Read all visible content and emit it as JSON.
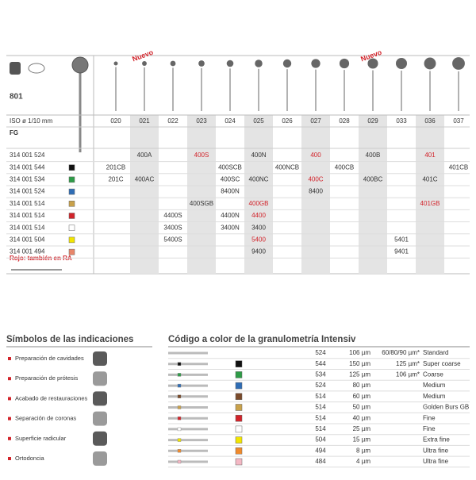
{
  "header": {
    "product": "801",
    "iso_label": "ISO ø 1/10 mm",
    "shank": "FG",
    "new_labels": [
      {
        "text": "Nuevo",
        "column": "021"
      },
      {
        "text": "Nuevo",
        "column": "029"
      }
    ]
  },
  "sizes": [
    "020",
    "021",
    "022",
    "023",
    "024",
    "025",
    "026",
    "027",
    "028",
    "029",
    "033",
    "036",
    "037"
  ],
  "rows": [
    {
      "ref": "314 001 524",
      "cells": [
        null,
        "400A",
        null,
        {
          "text": "400S",
          "color": "#d2232a"
        },
        null,
        "400N",
        null,
        {
          "text": "400",
          "color": "#d2232a"
        },
        null,
        "400B",
        null,
        {
          "text": "401",
          "color": "#d2232a"
        },
        null
      ]
    },
    {
      "ref": "314 001 544",
      "swatch": "#111111",
      "cells": [
        "201CB",
        null,
        null,
        null,
        "400SCB",
        null,
        "400NCB",
        null,
        "400CB",
        null,
        null,
        null,
        "401CB"
      ]
    },
    {
      "ref": "314 001 534",
      "swatch": "#2e9b47",
      "cells": [
        "201C",
        "400AC",
        null,
        null,
        "400SC",
        "400NC",
        null,
        {
          "text": "400C",
          "color": "#d2232a"
        },
        null,
        "400BC",
        null,
        "401C",
        null
      ]
    },
    {
      "ref": "314 001 524",
      "swatch": "#2f6db5",
      "cells": [
        null,
        null,
        null,
        null,
        "8400N",
        null,
        null,
        "8400",
        null,
        null,
        null,
        null,
        null
      ]
    },
    {
      "ref": "314 001 514",
      "swatch": "#c9a14a",
      "cells": [
        null,
        null,
        null,
        "400SGB",
        null,
        {
          "text": "400GB",
          "color": "#d2232a"
        },
        null,
        null,
        null,
        null,
        null,
        {
          "text": "401GB",
          "color": "#d2232a"
        },
        null
      ]
    },
    {
      "ref": "314 001 514",
      "swatch": "#d2232a",
      "cells": [
        null,
        null,
        "4400S",
        null,
        "4400N",
        {
          "text": "4400",
          "color": "#d2232a"
        },
        null,
        null,
        null,
        null,
        null,
        null,
        null
      ]
    },
    {
      "ref": "314 001 514",
      "swatch": "#ffffff",
      "cells": [
        null,
        null,
        "3400S",
        null,
        "3400N",
        "3400",
        null,
        null,
        null,
        null,
        null,
        null,
        null
      ]
    },
    {
      "ref": "314 001 504",
      "swatch": "#f2e500",
      "cells": [
        null,
        null,
        "5400S",
        null,
        null,
        {
          "text": "5400",
          "color": "#d2232a"
        },
        null,
        null,
        null,
        null,
        "5401",
        null,
        null
      ]
    },
    {
      "ref": "314 001 494",
      "swatch": "#e8866a",
      "cells": [
        null,
        null,
        null,
        null,
        null,
        "9400",
        null,
        null,
        null,
        null,
        "9401",
        null,
        null
      ]
    }
  ],
  "note": "Rojo: también en RA",
  "indications": {
    "title": "Símbolos de las indicaciones",
    "items": [
      "Preparación de cavidades",
      "Preparación de prótesis",
      "Acabado de restauraciones",
      "Separación de coronas",
      "Superficie radicular",
      "Ortodoncia"
    ]
  },
  "grit": {
    "title": "Código a color de la granulometría Intensiv",
    "rows": [
      {
        "code": "524",
        "grain": "106 µm",
        "extra": "60/80/90 µm*",
        "name": "Standard"
      },
      {
        "code": "544",
        "grain": "150 µm",
        "extra": "125 µm*",
        "name": "Super coarse",
        "color": "#111111"
      },
      {
        "code": "534",
        "grain": "125 µm",
        "extra": "106 µm*",
        "name": "Coarse",
        "color": "#2e9b47"
      },
      {
        "code": "524",
        "grain": "80 µm",
        "name": "Medium",
        "color": "#2f6db5"
      },
      {
        "code": "514",
        "grain": "60 µm",
        "name": "Medium",
        "color": "#7a4a2a"
      },
      {
        "code": "514",
        "grain": "50 µm",
        "name": "Golden Burs GB",
        "color": "#c9a14a"
      },
      {
        "code": "514",
        "grain": "40 µm",
        "name": "Fine",
        "color": "#d2232a"
      },
      {
        "code": "514",
        "grain": "25 µm",
        "name": "Fine",
        "color": "#ffffff"
      },
      {
        "code": "504",
        "grain": "15 µm",
        "name": "Extra fine",
        "color": "#f2e500"
      },
      {
        "code": "494",
        "grain": "8 µm",
        "name": "Ultra fine",
        "color": "#f08a2c"
      },
      {
        "code": "484",
        "grain": "4 µm",
        "name": "Ultra fine",
        "color": "#f4b8c4"
      }
    ]
  }
}
